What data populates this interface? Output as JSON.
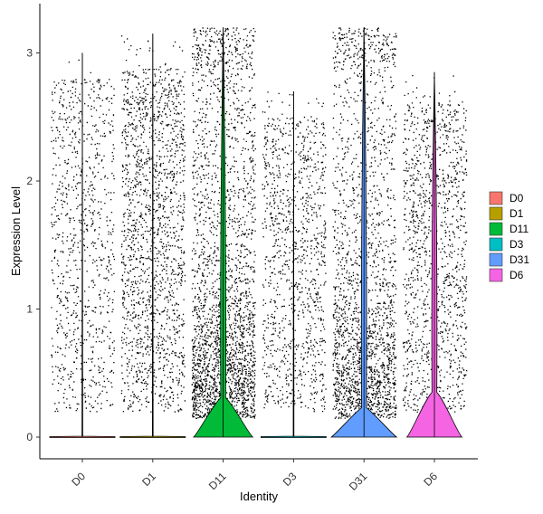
{
  "chart_data": {
    "type": "violin",
    "xlabel": "Identity",
    "ylabel": "Expression Level",
    "ylim": [
      -0.2,
      3.3
    ],
    "yticks": [
      0,
      1,
      2,
      3
    ],
    "categories": [
      "D0",
      "D1",
      "D11",
      "D3",
      "D31",
      "D6"
    ],
    "colors": [
      "#F8766D",
      "#B79F00",
      "#00BA38",
      "#00BFC4",
      "#619CFF",
      "#F564E3"
    ],
    "legend_position": "right",
    "grid": false,
    "groups": [
      {
        "name": "D0",
        "max": 3.0,
        "zero_fraction": 0.87,
        "point_count": 900,
        "density_peak_y": 0.0,
        "upper_density": "uniform"
      },
      {
        "name": "D1",
        "max": 3.15,
        "zero_fraction": 0.8,
        "point_count": 1700,
        "density_peak_y": 0.0,
        "upper_density": "mid"
      },
      {
        "name": "D11",
        "max": 3.2,
        "zero_fraction": 0.62,
        "point_count": 2600,
        "density_peak_y": 0.0,
        "upper_density": "low"
      },
      {
        "name": "D3",
        "max": 2.7,
        "zero_fraction": 0.85,
        "point_count": 1100,
        "density_peak_y": 0.0,
        "upper_density": "mid"
      },
      {
        "name": "D31",
        "max": 3.2,
        "zero_fraction": 0.75,
        "point_count": 2100,
        "density_peak_y": 0.0,
        "upper_density": "low"
      },
      {
        "name": "D6",
        "max": 2.85,
        "zero_fraction": 0.55,
        "point_count": 1300,
        "density_peak_y": 0.0,
        "upper_density": "mid"
      }
    ]
  }
}
